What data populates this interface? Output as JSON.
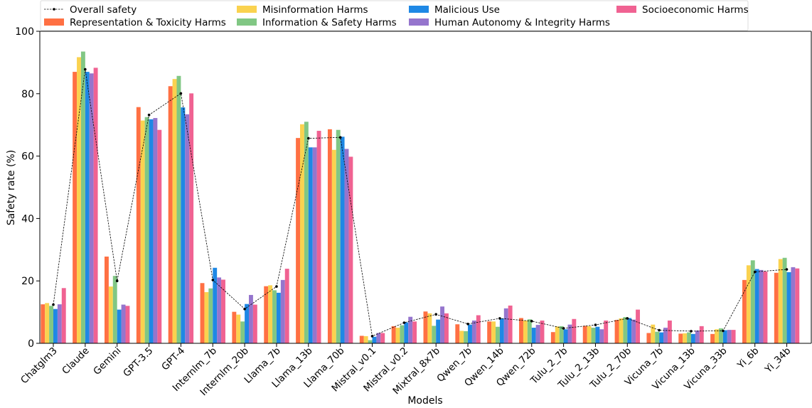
{
  "chart_data": {
    "type": "bar",
    "xlabel": "Models",
    "ylabel": "Safety rate (%)",
    "ylim": [
      0,
      100
    ],
    "yticks": [
      0,
      20,
      40,
      60,
      80,
      100
    ],
    "grid": false,
    "legend_position": "top",
    "categories": [
      "Chatglm3",
      "Claude",
      "Gemini",
      "GPT-3.5",
      "GPT-4",
      "Internlm_7b",
      "Internlm_20b",
      "Llama_7b",
      "Llama_13b",
      "Llama_70b",
      "Mistral_v0.1",
      "Mistral_v0.2",
      "Mixtral_8x7b",
      "Qwen_7b",
      "Qwen_14b",
      "Qwen_72b",
      "Tulu_2_7b",
      "Tulu_2_13b",
      "Tulu_2_70b",
      "Vicuna_7b",
      "Vicuna_13b",
      "Vicuna_33b",
      "Yi_6b",
      "Yi_34b"
    ],
    "overall": {
      "name": "Overall safety",
      "color": "#000000",
      "values": [
        12.4,
        87.8,
        20.0,
        73.2,
        80.1,
        20.3,
        11.0,
        18.2,
        65.7,
        66.0,
        2.3,
        6.6,
        9.3,
        6.2,
        8.0,
        7.1,
        4.8,
        5.9,
        8.0,
        4.2,
        3.9,
        4.0,
        22.9,
        23.7
      ]
    },
    "series": [
      {
        "name": "Representation & Toxicity Harms",
        "color": "#ff7043",
        "values": [
          12.5,
          87.0,
          27.8,
          75.7,
          82.4,
          19.3,
          10.1,
          18.3,
          65.8,
          68.6,
          2.4,
          5.5,
          10.2,
          6.1,
          7.0,
          8.1,
          3.6,
          5.6,
          7.5,
          3.3,
          3.1,
          3.0,
          20.3,
          22.6
        ]
      },
      {
        "name": "Misinformation Harms",
        "color": "#fad24f",
        "values": [
          12.9,
          91.7,
          18.2,
          71.4,
          84.7,
          16.4,
          9.2,
          18.6,
          70.2,
          62.0,
          2.3,
          5.0,
          9.6,
          4.0,
          7.0,
          7.3,
          5.4,
          5.5,
          8.0,
          6.0,
          3.2,
          4.5,
          25.0,
          27.0
        ]
      },
      {
        "name": "Information & Safety Harms",
        "color": "#81c784",
        "values": [
          12.0,
          93.5,
          21.6,
          72.5,
          85.7,
          17.6,
          7.0,
          17.0,
          71.0,
          68.4,
          1.0,
          5.8,
          5.6,
          3.9,
          5.3,
          7.7,
          5.5,
          5.0,
          8.4,
          3.7,
          3.5,
          4.8,
          26.6,
          27.4
        ]
      },
      {
        "name": "Malicious Use",
        "color": "#1e88e5",
        "values": [
          11.0,
          87.0,
          10.8,
          71.8,
          75.6,
          24.2,
          12.6,
          16.2,
          62.8,
          66.2,
          2.1,
          6.7,
          7.6,
          6.0,
          8.0,
          5.0,
          4.5,
          5.3,
          8.1,
          3.5,
          3.0,
          4.2,
          23.8,
          22.8
        ]
      },
      {
        "name": "Human Autonomy & Integrity Harms",
        "color": "#9575cd",
        "values": [
          12.5,
          86.5,
          12.4,
          72.2,
          73.4,
          21.1,
          15.5,
          20.3,
          62.8,
          62.3,
          3.3,
          8.5,
          11.8,
          7.3,
          11.2,
          5.9,
          6.0,
          4.5,
          7.6,
          5.0,
          4.1,
          4.3,
          23.5,
          24.4
        ]
      },
      {
        "name": "Socioeconomic Harms",
        "color": "#f06292",
        "values": [
          17.7,
          88.3,
          12.0,
          68.4,
          80.1,
          20.4,
          12.4,
          23.9,
          68.1,
          59.8,
          3.3,
          7.0,
          9.6,
          9.0,
          12.1,
          7.3,
          7.8,
          7.3,
          10.8,
          7.3,
          5.5,
          4.3,
          23.0,
          24.0
        ]
      }
    ]
  }
}
